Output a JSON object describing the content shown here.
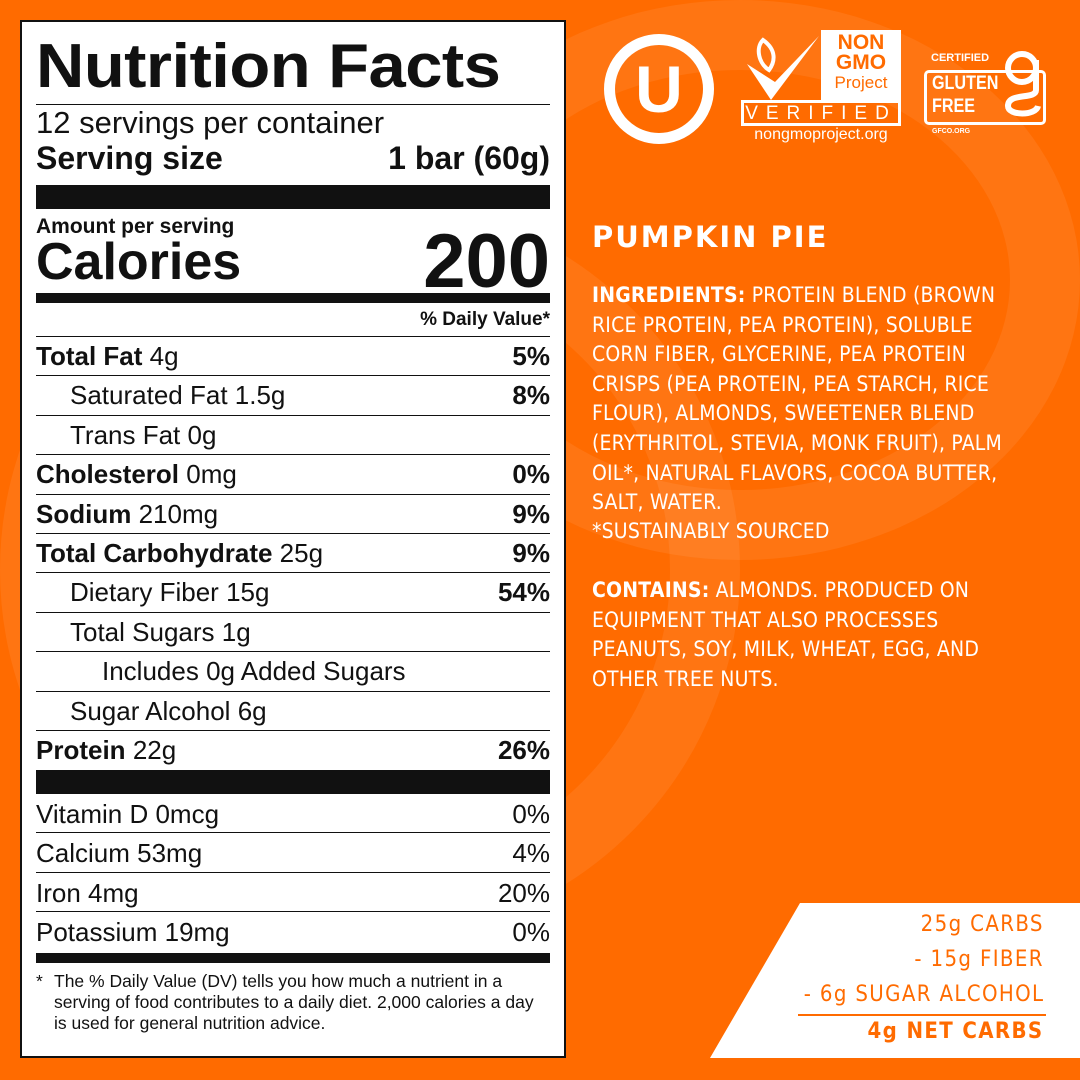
{
  "label": {
    "title": "Nutrition Facts",
    "servings": "12 servings per container",
    "serving_size_label": "Serving size",
    "serving_size_value": "1 bar (60g)",
    "amount_per_serving": "Amount per serving",
    "calories_label": "Calories",
    "calories_value": "200",
    "dv_header": "% Daily Value*",
    "rows": [
      {
        "name": "Total Fat",
        "amount": "4g",
        "dv": "5%",
        "bold": true,
        "indent": 0
      },
      {
        "name": "Saturated Fat",
        "amount": "1.5g",
        "dv": "8%",
        "bold": false,
        "indent": 1
      },
      {
        "name": "Trans Fat",
        "amount": "0g",
        "dv": "",
        "bold": false,
        "indent": 1
      },
      {
        "name": "Cholesterol",
        "amount": "0mg",
        "dv": "0%",
        "bold": true,
        "indent": 0
      },
      {
        "name": "Sodium",
        "amount": "210mg",
        "dv": "9%",
        "bold": true,
        "indent": 0
      },
      {
        "name": "Total Carbohydrate",
        "amount": "25g",
        "dv": "9%",
        "bold": true,
        "indent": 0
      },
      {
        "name": "Dietary Fiber",
        "amount": "15g",
        "dv": "54%",
        "bold": false,
        "indent": 1
      },
      {
        "name": "Total Sugars",
        "amount": "1g",
        "dv": "",
        "bold": false,
        "indent": 1
      },
      {
        "name": "Includes 0g Added Sugars",
        "amount": "",
        "dv": "",
        "bold": false,
        "indent": 2
      },
      {
        "name": "Sugar Alcohol",
        "amount": "6g",
        "dv": "",
        "bold": false,
        "indent": 1
      },
      {
        "name": "Protein",
        "amount": "22g",
        "dv": "26%",
        "bold": true,
        "indent": 0
      }
    ],
    "vitamins": [
      {
        "name": "Vitamin D 0mcg",
        "dv": "0%"
      },
      {
        "name": "Calcium 53mg",
        "dv": "4%"
      },
      {
        "name": "Iron 4mg",
        "dv": "20%"
      },
      {
        "name": "Potassium 19mg",
        "dv": "0%"
      }
    ],
    "footnote_star": "*",
    "footnote": "The % Daily Value (DV) tells you how much a nutrient in a serving of food contributes to a daily diet. 2,000 calories a day is used for general nutrition advice."
  },
  "logos": {
    "kosher": "U",
    "nongmo_top": [
      "NON",
      "GMO",
      "Project"
    ],
    "nongmo_verified": "VERIFIED",
    "nongmo_url": "nongmoproject.org",
    "gf_certified": "CERTIFIED",
    "gf_text": [
      "GLUTEN",
      "FREE"
    ],
    "gf_url": "GFCO.ORG"
  },
  "product": {
    "flavor": "PUMPKIN PIE",
    "ingredients_label": "INGREDIENTS:",
    "ingredients": "PROTEIN BLEND (BROWN RICE PROTEIN, PEA PROTEIN), SOLUBLE CORN FIBER, GLYCERINE, PEA PROTEIN CRISPS (PEA PROTEIN, PEA STARCH, RICE FLOUR), ALMONDS, SWEETENER BLEND (ERYTHRITOL, STEVIA, MONK FRUIT), PALM OIL*, NATURAL FLAVORS, COCOA BUTTER, SALT, WATER.",
    "sustainably": "*SUSTAINABLY SOURCED",
    "contains_label": "CONTAINS:",
    "contains": "ALMONDS. PRODUCED ON EQUIPMENT THAT ALSO PROCESSES PEANUTS, SOY, MILK, WHEAT, EGG, AND OTHER TREE NUTS."
  },
  "net_carbs": {
    "lines": [
      "25g CARBS",
      "- 15g FIBER",
      "- 6g SUGAR ALCOHOL"
    ],
    "result": "4g NET CARBS"
  },
  "colors": {
    "background": "#ff6b00",
    "accent": "#ff6b00",
    "text": "#111111"
  }
}
